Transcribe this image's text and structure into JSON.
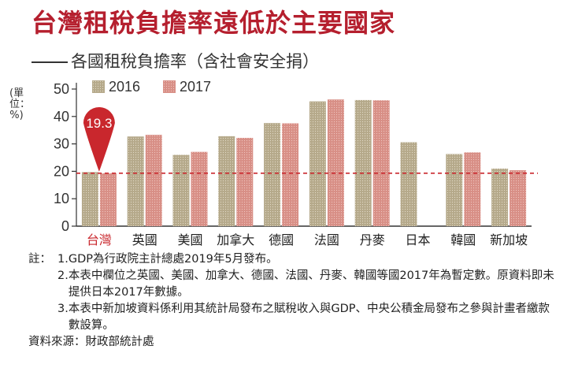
{
  "title": "台灣租稅負擔率遠低於主要國家",
  "subtitle": "各國租稅負擔率（含社會安全捐）",
  "unit_label": "(單位：%)",
  "colors": {
    "title": "#b51f2e",
    "series_2016": "#b5a98a",
    "series_2017": "#d88f86",
    "highlight": "#c9272d",
    "reference_line": "#c9272d",
    "callout": "#c9272d"
  },
  "chart_data": {
    "type": "bar",
    "categories": [
      "台灣",
      "英國",
      "美國",
      "加拿大",
      "德國",
      "法國",
      "丹麥",
      "日本",
      "韓國",
      "新加坡"
    ],
    "highlight_category": "台灣",
    "series": [
      {
        "name": "2016",
        "values": [
          19.7,
          32.7,
          26.0,
          32.8,
          37.6,
          45.5,
          46.0,
          30.6,
          26.3,
          21.0
        ]
      },
      {
        "name": "2017",
        "values": [
          19.3,
          33.3,
          27.1,
          32.2,
          37.5,
          46.2,
          45.9,
          null,
          26.9,
          20.4
        ]
      }
    ],
    "ylim": [
      0,
      50
    ],
    "yticks": [
      "0",
      "10",
      "20",
      "30",
      "40",
      "50"
    ],
    "reference_line": 19.3,
    "callout": {
      "category": "台灣",
      "text": "19.3"
    },
    "legend_position": "top-left",
    "grid": false
  },
  "notes": {
    "lead": "註：",
    "items": [
      {
        "num": "1.",
        "text": "GDP為行政院主計總處2019年5月發布。"
      },
      {
        "num": "2.",
        "text": "本表中欄位之英國、美國、加拿大、德國、法國、丹麥、韓國等國2017年為暫定數。原資料即未提供日本2017年數據。"
      },
      {
        "num": "3.",
        "text": "本表中新加坡資料係利用其統計局發布之賦稅收入與GDP、中央公積金局發布之參與計畫者繳款數設算。"
      }
    ],
    "source": "資料來源：財政部統計處"
  }
}
